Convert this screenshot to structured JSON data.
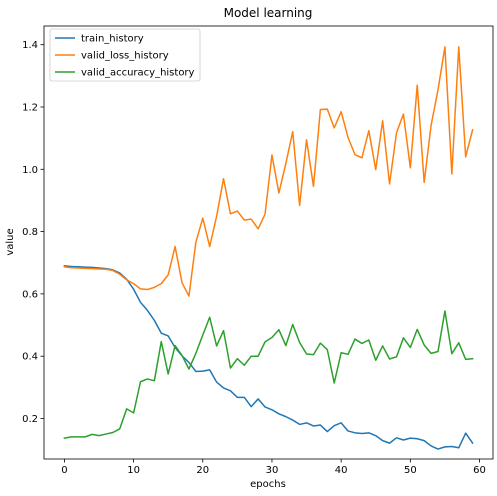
{
  "chart_data": {
    "type": "line",
    "title": "Model learning",
    "xlabel": "epochs",
    "ylabel": "value",
    "xlim": [
      -2.95,
      61.95
    ],
    "ylim": [
      0.07,
      1.46
    ],
    "xticks": [
      "0",
      "10",
      "20",
      "30",
      "40",
      "50",
      "60"
    ],
    "yticks": [
      "0.2",
      "0.4",
      "0.6",
      "0.8",
      "1.0",
      "1.2",
      "1.4"
    ],
    "grid": false,
    "legend_position": "top-left",
    "x": [
      0,
      1,
      2,
      3,
      4,
      5,
      6,
      7,
      8,
      9,
      10,
      11,
      12,
      13,
      14,
      15,
      16,
      17,
      18,
      19,
      20,
      21,
      22,
      23,
      24,
      25,
      26,
      27,
      28,
      29,
      30,
      31,
      32,
      33,
      34,
      35,
      36,
      37,
      38,
      39,
      40,
      41,
      42,
      43,
      44,
      45,
      46,
      47,
      48,
      49,
      50,
      51,
      52,
      53,
      54,
      55,
      56,
      57,
      58,
      59
    ],
    "series": [
      {
        "name": "train_history",
        "color": "#1f77b4",
        "values": [
          0.69,
          0.688,
          0.687,
          0.686,
          0.685,
          0.683,
          0.681,
          0.677,
          0.667,
          0.647,
          0.615,
          0.573,
          0.547,
          0.515,
          0.474,
          0.465,
          0.428,
          0.401,
          0.38,
          0.351,
          0.352,
          0.356,
          0.317,
          0.298,
          0.289,
          0.268,
          0.268,
          0.238,
          0.263,
          0.237,
          0.228,
          0.215,
          0.206,
          0.195,
          0.181,
          0.186,
          0.176,
          0.179,
          0.158,
          0.177,
          0.186,
          0.16,
          0.154,
          0.152,
          0.154,
          0.145,
          0.129,
          0.121,
          0.138,
          0.131,
          0.137,
          0.135,
          0.129,
          0.112,
          0.102,
          0.109,
          0.11,
          0.106,
          0.153,
          0.121
        ]
      },
      {
        "name": "valid_loss_history",
        "color": "#ff7f0e",
        "values": [
          0.687,
          0.684,
          0.683,
          0.682,
          0.681,
          0.68,
          0.679,
          0.675,
          0.663,
          0.645,
          0.633,
          0.616,
          0.614,
          0.621,
          0.633,
          0.661,
          0.752,
          0.636,
          0.593,
          0.766,
          0.843,
          0.752,
          0.849,
          0.97,
          0.857,
          0.866,
          0.837,
          0.84,
          0.809,
          0.856,
          1.046,
          0.924,
          1.018,
          1.121,
          0.884,
          1.095,
          0.945,
          1.192,
          1.193,
          1.133,
          1.185,
          1.102,
          1.047,
          1.037,
          1.124,
          0.999,
          1.156,
          0.953,
          1.117,
          1.177,
          1.005,
          1.27,
          0.958,
          1.141,
          1.255,
          1.393,
          0.985,
          1.393,
          1.04,
          1.127
        ]
      },
      {
        "name": "valid_accuracy_history",
        "color": "#2ca02c",
        "values": [
          0.137,
          0.141,
          0.141,
          0.141,
          0.149,
          0.145,
          0.15,
          0.155,
          0.167,
          0.231,
          0.218,
          0.318,
          0.327,
          0.321,
          0.447,
          0.343,
          0.434,
          0.402,
          0.359,
          0.409,
          0.468,
          0.525,
          0.433,
          0.482,
          0.362,
          0.392,
          0.371,
          0.4,
          0.4,
          0.446,
          0.46,
          0.485,
          0.434,
          0.502,
          0.444,
          0.407,
          0.405,
          0.442,
          0.421,
          0.314,
          0.411,
          0.406,
          0.455,
          0.441,
          0.452,
          0.387,
          0.433,
          0.391,
          0.398,
          0.459,
          0.428,
          0.486,
          0.436,
          0.409,
          0.415,
          0.545,
          0.408,
          0.443,
          0.39,
          0.392
        ]
      }
    ]
  }
}
